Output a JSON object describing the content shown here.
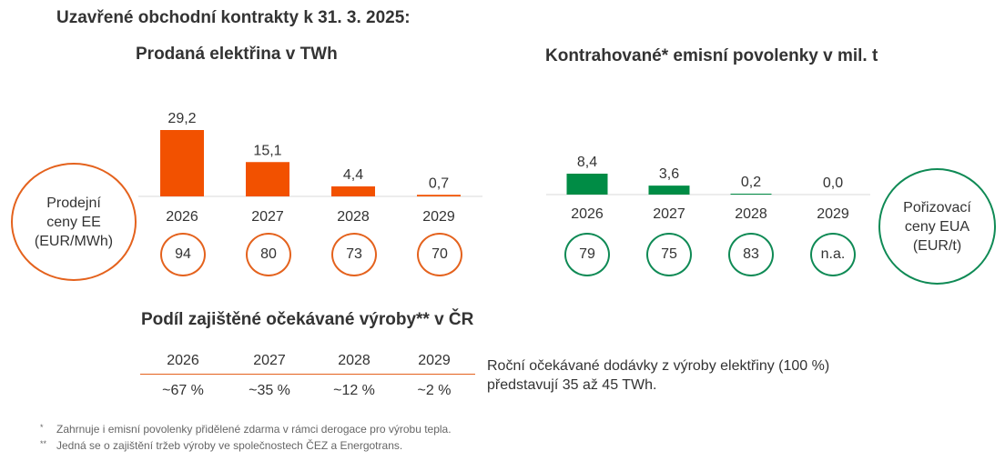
{
  "title": "Uzavřené obchodní kontrakty k 31. 3. 2025:",
  "chart_data": [
    {
      "type": "bar",
      "title": "Prodaná elektřina v TWh",
      "categories": [
        "2026",
        "2027",
        "2028",
        "2029"
      ],
      "values": [
        29.2,
        15.1,
        4.4,
        0.7
      ],
      "value_labels": [
        "29,2",
        "15,1",
        "4,4",
        "0,7"
      ],
      "color": "#f25100",
      "price_label": "Prodejní ceny EE (EUR/MWh)",
      "price_label_lines": [
        "Prodejní",
        "ceny EE",
        "(EUR/MWh)"
      ],
      "prices": [
        "94",
        "80",
        "73",
        "70"
      ],
      "circle_color": "#e4621d"
    },
    {
      "type": "bar",
      "title": "Kontrahované* emisní povolenky v mil. t",
      "categories": [
        "2026",
        "2027",
        "2028",
        "2029"
      ],
      "values": [
        8.4,
        3.6,
        0.2,
        0.0
      ],
      "value_labels": [
        "8,4",
        "3,6",
        "0,2",
        "0,0"
      ],
      "color": "#008c45",
      "price_label": "Pořizovací ceny EUA (EUR/t)",
      "price_label_lines": [
        "Pořizovací",
        "ceny EUA",
        "(EUR/t)"
      ],
      "prices": [
        "79",
        "75",
        "83",
        "n.a."
      ],
      "circle_color": "#0f8a55"
    }
  ],
  "hedge": {
    "title": "Podíl zajištěné očekávané výroby** v ČR",
    "years": [
      "2026",
      "2027",
      "2028",
      "2029"
    ],
    "shares": [
      "~67 %",
      "~35 %",
      "~12 %",
      "~2 %"
    ],
    "note_lines": [
      "Roční očekávané dodávky z výroby elektřiny (100 %)",
      "představují 35 až 45 TWh."
    ]
  },
  "footnotes": [
    {
      "mark": "*",
      "text": "Zahrnuje i emisní povolenky přidělené zdarma v rámci derogace pro výrobu tepla."
    },
    {
      "mark": "**",
      "text": "Jedná se o zajištění tržeb výroby ve společnostech ČEZ a Energotrans."
    }
  ]
}
